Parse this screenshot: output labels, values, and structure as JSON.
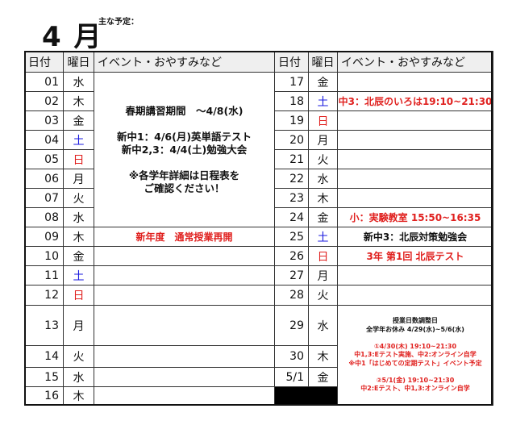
{
  "title": {
    "month": "4 月",
    "plan_label": "主な予定："
  },
  "headers": {
    "date": "日付",
    "weekday": "曜日",
    "event": "イベント・おやすみなど"
  },
  "colors": {
    "saturday": "#1a1adf",
    "sunday": "#e0201e",
    "event_red": "#e0201e"
  },
  "left_rows": [
    {
      "date": "01",
      "weekday": "水"
    },
    {
      "date": "02",
      "weekday": "木"
    },
    {
      "date": "03",
      "weekday": "金"
    },
    {
      "date": "04",
      "weekday": "土"
    },
    {
      "date": "05",
      "weekday": "日"
    },
    {
      "date": "06",
      "weekday": "月"
    },
    {
      "date": "07",
      "weekday": "火"
    },
    {
      "date": "08",
      "weekday": "水"
    },
    {
      "date": "09",
      "weekday": "木",
      "event": "新年度　通常授業再開",
      "event_color": "red"
    },
    {
      "date": "10",
      "weekday": "金"
    },
    {
      "date": "11",
      "weekday": "土"
    },
    {
      "date": "12",
      "weekday": "日"
    },
    {
      "date": "13",
      "weekday": "月"
    },
    {
      "date": "14",
      "weekday": "火"
    },
    {
      "date": "15",
      "weekday": "水"
    },
    {
      "date": "16",
      "weekday": "木"
    }
  ],
  "left_block": [
    "春期講習期間　～4/8(水)",
    "",
    "新中1：4/6(月)英単語テスト",
    "新中2,3：4/4(土)勉強大会",
    "",
    "※各学年詳細は日程表を",
    "ご確認ください！"
  ],
  "right_rows": [
    {
      "date": "17",
      "weekday": "金"
    },
    {
      "date": "18",
      "weekday": "土",
      "event": "中3：北辰のいろは19:10~21:30",
      "event_color": "red"
    },
    {
      "date": "19",
      "weekday": "日"
    },
    {
      "date": "20",
      "weekday": "月"
    },
    {
      "date": "21",
      "weekday": "火"
    },
    {
      "date": "22",
      "weekday": "水"
    },
    {
      "date": "23",
      "weekday": "木"
    },
    {
      "date": "24",
      "weekday": "金",
      "event": "小：実験教室 15:50~16:35",
      "event_color": "red"
    },
    {
      "date": "25",
      "weekday": "土",
      "event": "新中3：北辰対策勉強会",
      "event_color": "black"
    },
    {
      "date": "26",
      "weekday": "日",
      "event": "3年 第1回 北辰テスト",
      "event_color": "red"
    },
    {
      "date": "27",
      "weekday": "月"
    },
    {
      "date": "28",
      "weekday": "火"
    },
    {
      "date": "29",
      "weekday": "水"
    },
    {
      "date": "30",
      "weekday": "木"
    },
    {
      "date": "5/1",
      "weekday": "金"
    }
  ],
  "right_block": [
    {
      "text": "授業日数調整日",
      "color": "black"
    },
    {
      "text": "全学年お休み 4/29(水)~5/6(水)",
      "color": "black"
    },
    {
      "text": "",
      "color": "black"
    },
    {
      "text": "①4/30(木) 19:10~21:30",
      "color": "red"
    },
    {
      "text": "中1,3:Eテスト実施、中2:オンライン自学",
      "color": "red"
    },
    {
      "text": "※中1「はじめての定期テスト」イベント予定",
      "color": "red"
    },
    {
      "text": "",
      "color": "red"
    },
    {
      "text": "②5/1(金) 19:10~21:30",
      "color": "red"
    },
    {
      "text": "中2:Eテスト、中1,3:オンライン自学",
      "color": "red"
    }
  ]
}
